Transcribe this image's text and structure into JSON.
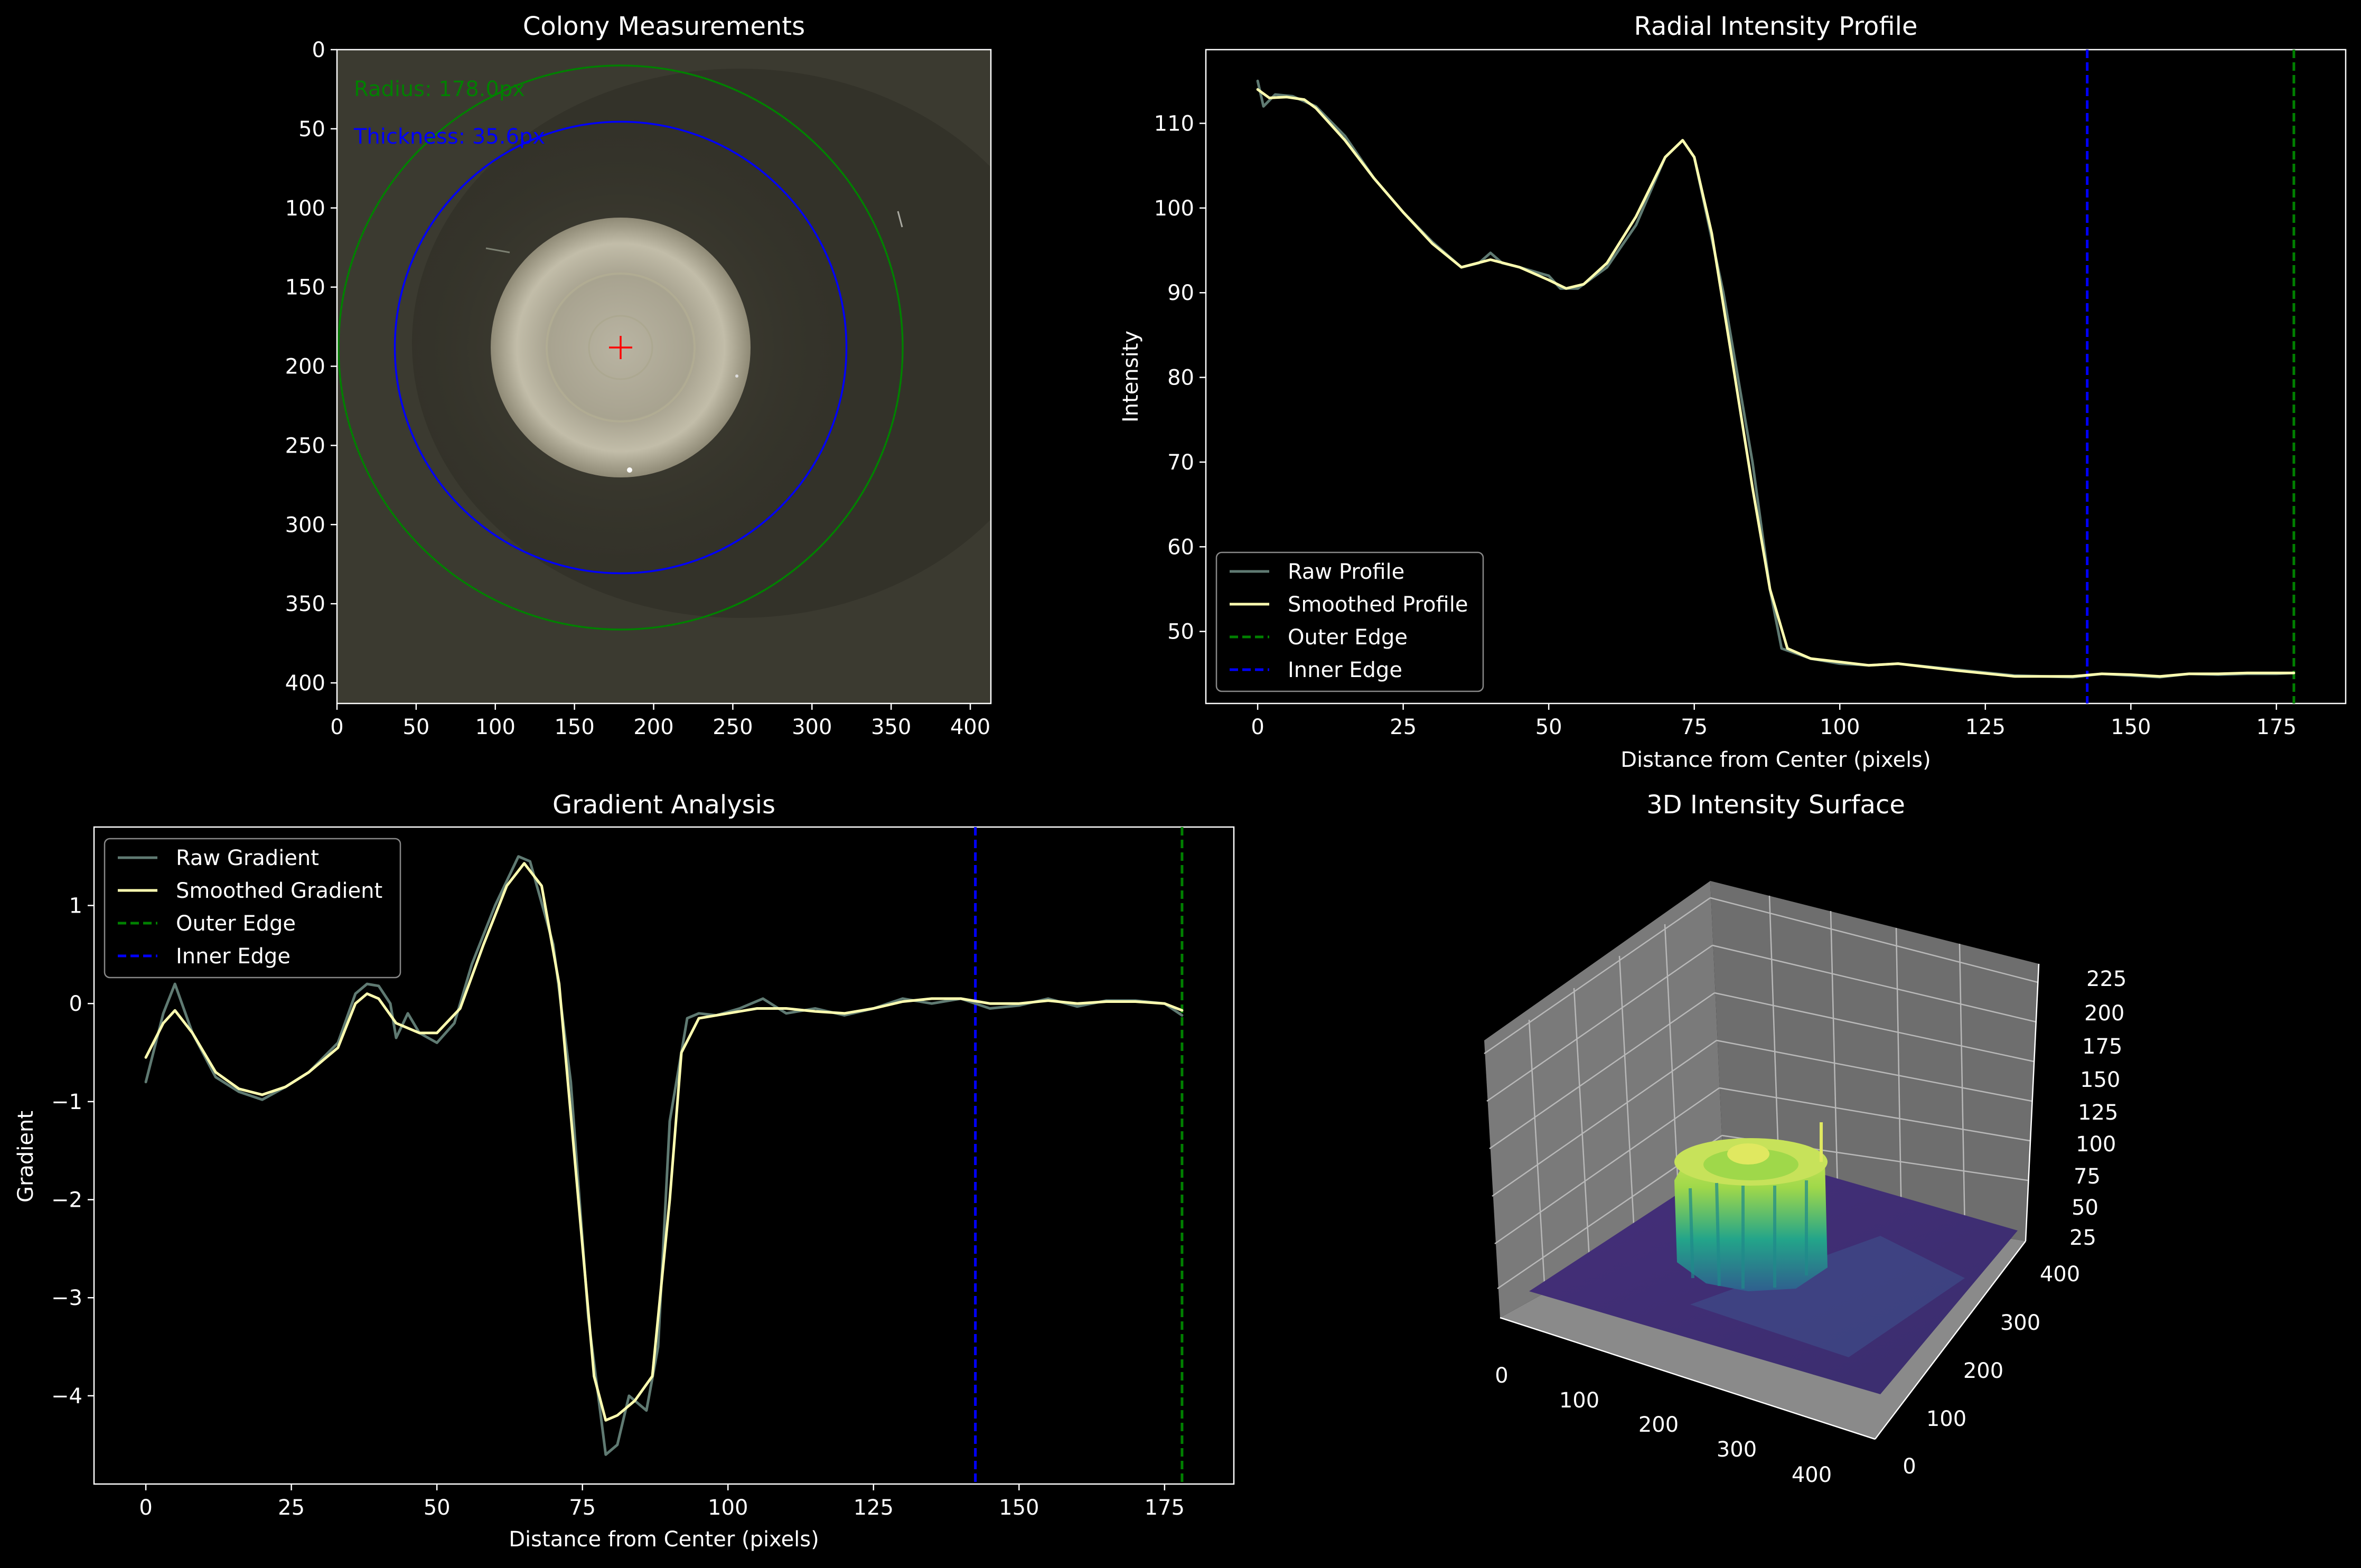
{
  "colors": {
    "background": "#000000",
    "axis": "#ffffff",
    "raw": "#5f7a72",
    "smoothed": "#ffffb0",
    "outer_edge": "#008000",
    "inner_edge": "#0000ff",
    "marker": "#ff0000",
    "surface_low": "#3b2a72",
    "surface_high": "#d8e85a"
  },
  "chart_data": [
    {
      "type": "image",
      "title": "Colony Measurements",
      "xlim": [
        0,
        413
      ],
      "ylim": [
        413,
        0
      ],
      "x_ticks": [
        "0",
        "50",
        "100",
        "150",
        "200",
        "250",
        "300",
        "350",
        "400"
      ],
      "y_ticks": [
        "0",
        "50",
        "100",
        "150",
        "200",
        "250",
        "300",
        "350",
        "400"
      ],
      "center": [
        179,
        188
      ],
      "outer_radius": 178,
      "inner_radius": 142.5,
      "colony_radius": 82,
      "annotations": [
        "Radius: 178.0px",
        "Thickness: 35.6px"
      ]
    },
    {
      "type": "line",
      "title": "Radial Intensity Profile",
      "xlabel": "Distance from Center (pixels)",
      "ylabel": "Intensity",
      "xlim": [
        -8.9,
        186.9
      ],
      "ylim": [
        41.5,
        118.7
      ],
      "x_ticks": [
        "0",
        "25",
        "50",
        "75",
        "100",
        "125",
        "150",
        "175"
      ],
      "y_ticks": [
        "50",
        "60",
        "70",
        "80",
        "90",
        "100",
        "110"
      ],
      "legend": [
        "Raw Profile",
        "Smoothed Profile",
        "Outer Edge",
        "Inner Edge"
      ],
      "legend_loc": "lower-left",
      "vlines": {
        "outer": 178,
        "inner": 142.5
      },
      "series": [
        {
          "name": "Raw Profile",
          "points": [
            [
              0,
              115
            ],
            [
              1,
              112
            ],
            [
              3,
              113.4
            ],
            [
              6,
              113.2
            ],
            [
              10,
              112
            ],
            [
              15,
              108.5
            ],
            [
              20,
              103.5
            ],
            [
              25,
              99.5
            ],
            [
              30,
              96
            ],
            [
              35,
              93
            ],
            [
              38,
              93.5
            ],
            [
              40,
              94.7
            ],
            [
              42,
              93.5
            ],
            [
              45,
              93
            ],
            [
              50,
              92
            ],
            [
              52,
              90.5
            ],
            [
              55,
              90.5
            ],
            [
              60,
              93
            ],
            [
              65,
              98
            ],
            [
              70,
              106
            ],
            [
              73,
              108
            ],
            [
              75,
              106
            ],
            [
              80,
              90
            ],
            [
              85,
              70
            ],
            [
              88,
              55
            ],
            [
              90,
              48
            ],
            [
              95,
              46.8
            ],
            [
              100,
              46.2
            ],
            [
              105,
              46
            ],
            [
              110,
              46.2
            ],
            [
              120,
              45.5
            ],
            [
              130,
              44.8
            ],
            [
              140,
              44.6
            ],
            [
              145,
              45
            ],
            [
              150,
              44.8
            ],
            [
              155,
              44.6
            ],
            [
              160,
              45
            ],
            [
              165,
              44.9
            ],
            [
              170,
              45
            ],
            [
              175,
              45
            ],
            [
              178,
              45.1
            ]
          ]
        },
        {
          "name": "Smoothed Profile",
          "points": [
            [
              0,
              114
            ],
            [
              2,
              113
            ],
            [
              5,
              113.1
            ],
            [
              8,
              112.8
            ],
            [
              10,
              111.8
            ],
            [
              15,
              108
            ],
            [
              20,
              103.5
            ],
            [
              25,
              99.5
            ],
            [
              30,
              95.8
            ],
            [
              35,
              93
            ],
            [
              40,
              93.9
            ],
            [
              45,
              93
            ],
            [
              50,
              91.5
            ],
            [
              53,
              90.5
            ],
            [
              56,
              91
            ],
            [
              60,
              93.5
            ],
            [
              65,
              99
            ],
            [
              70,
              106
            ],
            [
              73,
              108
            ],
            [
              75,
              106
            ],
            [
              78,
              97
            ],
            [
              82,
              80
            ],
            [
              85,
              67
            ],
            [
              88,
              55
            ],
            [
              91,
              48
            ],
            [
              95,
              46.8
            ],
            [
              100,
              46.4
            ],
            [
              105,
              46
            ],
            [
              110,
              46.2
            ],
            [
              120,
              45.4
            ],
            [
              130,
              44.7
            ],
            [
              140,
              44.7
            ],
            [
              145,
              45
            ],
            [
              150,
              44.9
            ],
            [
              155,
              44.7
            ],
            [
              160,
              45
            ],
            [
              165,
              45
            ],
            [
              170,
              45.1
            ],
            [
              178,
              45.1
            ]
          ]
        }
      ]
    },
    {
      "type": "line",
      "title": "Gradient Analysis",
      "xlabel": "Distance from Center (pixels)",
      "ylabel": "Gradient",
      "xlim": [
        -8.9,
        186.9
      ],
      "ylim": [
        -4.9,
        1.8
      ],
      "x_ticks": [
        "0",
        "25",
        "50",
        "75",
        "100",
        "125",
        "150",
        "175"
      ],
      "y_ticks": [
        "−4",
        "−3",
        "−2",
        "−1",
        "0",
        "1"
      ],
      "legend": [
        "Raw Gradient",
        "Smoothed Gradient",
        "Outer Edge",
        "Inner Edge"
      ],
      "legend_loc": "upper-left",
      "vlines": {
        "outer": 178,
        "inner": 142.5
      },
      "series": [
        {
          "name": "Raw Gradient",
          "points": [
            [
              0,
              -0.8
            ],
            [
              3,
              -0.1
            ],
            [
              5,
              0.2
            ],
            [
              8,
              -0.3
            ],
            [
              12,
              -0.75
            ],
            [
              16,
              -0.9
            ],
            [
              20,
              -0.98
            ],
            [
              24,
              -0.85
            ],
            [
              28,
              -0.7
            ],
            [
              33,
              -0.4
            ],
            [
              36,
              0.1
            ],
            [
              38,
              0.2
            ],
            [
              40,
              0.18
            ],
            [
              42,
              0
            ],
            [
              43,
              -0.35
            ],
            [
              45,
              -0.1
            ],
            [
              47,
              -0.3
            ],
            [
              50,
              -0.4
            ],
            [
              53,
              -0.2
            ],
            [
              56,
              0.4
            ],
            [
              60,
              1.0
            ],
            [
              64,
              1.5
            ],
            [
              66,
              1.45
            ],
            [
              70,
              0.6
            ],
            [
              73,
              -0.8
            ],
            [
              76,
              -3.2
            ],
            [
              79,
              -4.6
            ],
            [
              81,
              -4.5
            ],
            [
              83,
              -4.0
            ],
            [
              85,
              -4.1
            ],
            [
              86,
              -4.15
            ],
            [
              88,
              -3.5
            ],
            [
              90,
              -1.2
            ],
            [
              93,
              -0.15
            ],
            [
              95,
              -0.1
            ],
            [
              98,
              -0.12
            ],
            [
              102,
              -0.05
            ],
            [
              106,
              0.05
            ],
            [
              110,
              -0.1
            ],
            [
              115,
              -0.05
            ],
            [
              120,
              -0.12
            ],
            [
              125,
              -0.05
            ],
            [
              130,
              0.05
            ],
            [
              135,
              0.0
            ],
            [
              140,
              0.05
            ],
            [
              145,
              -0.05
            ],
            [
              150,
              -0.02
            ],
            [
              155,
              0.05
            ],
            [
              160,
              -0.03
            ],
            [
              165,
              0.03
            ],
            [
              170,
              0.03
            ],
            [
              175,
              0.0
            ],
            [
              178,
              -0.12
            ]
          ]
        },
        {
          "name": "Smoothed Gradient",
          "points": [
            [
              0,
              -0.55
            ],
            [
              3,
              -0.2
            ],
            [
              5,
              -0.07
            ],
            [
              8,
              -0.3
            ],
            [
              12,
              -0.7
            ],
            [
              16,
              -0.87
            ],
            [
              20,
              -0.93
            ],
            [
              24,
              -0.85
            ],
            [
              28,
              -0.7
            ],
            [
              33,
              -0.45
            ],
            [
              36,
              0.0
            ],
            [
              38,
              0.1
            ],
            [
              40,
              0.05
            ],
            [
              43,
              -0.2
            ],
            [
              47,
              -0.3
            ],
            [
              50,
              -0.3
            ],
            [
              54,
              -0.05
            ],
            [
              58,
              0.6
            ],
            [
              62,
              1.2
            ],
            [
              65,
              1.43
            ],
            [
              68,
              1.2
            ],
            [
              71,
              0.2
            ],
            [
              74,
              -1.8
            ],
            [
              77,
              -3.8
            ],
            [
              79,
              -4.25
            ],
            [
              81,
              -4.2
            ],
            [
              84,
              -4.05
            ],
            [
              87,
              -3.8
            ],
            [
              90,
              -2.0
            ],
            [
              92,
              -0.5
            ],
            [
              95,
              -0.15
            ],
            [
              100,
              -0.1
            ],
            [
              105,
              -0.05
            ],
            [
              110,
              -0.05
            ],
            [
              115,
              -0.08
            ],
            [
              120,
              -0.1
            ],
            [
              125,
              -0.05
            ],
            [
              130,
              0.02
            ],
            [
              135,
              0.05
            ],
            [
              140,
              0.05
            ],
            [
              145,
              0.0
            ],
            [
              150,
              0.0
            ],
            [
              155,
              0.03
            ],
            [
              160,
              0.0
            ],
            [
              165,
              0.02
            ],
            [
              170,
              0.02
            ],
            [
              175,
              0.0
            ],
            [
              178,
              -0.07
            ]
          ]
        }
      ]
    },
    {
      "type": "surface",
      "title": "3D Intensity Surface",
      "x_ticks": [
        "0",
        "100",
        "200",
        "300",
        "400"
      ],
      "y_ticks": [
        "0",
        "100",
        "200",
        "300",
        "400"
      ],
      "z_ticks": [
        "25",
        "50",
        "75",
        "100",
        "125",
        "150",
        "175",
        "200",
        "225"
      ],
      "zlim": [
        25,
        230
      ],
      "peak_region": {
        "x": [
          100,
          260
        ],
        "y": [
          100,
          260
        ],
        "z": 150
      },
      "background_z": 45
    }
  ]
}
